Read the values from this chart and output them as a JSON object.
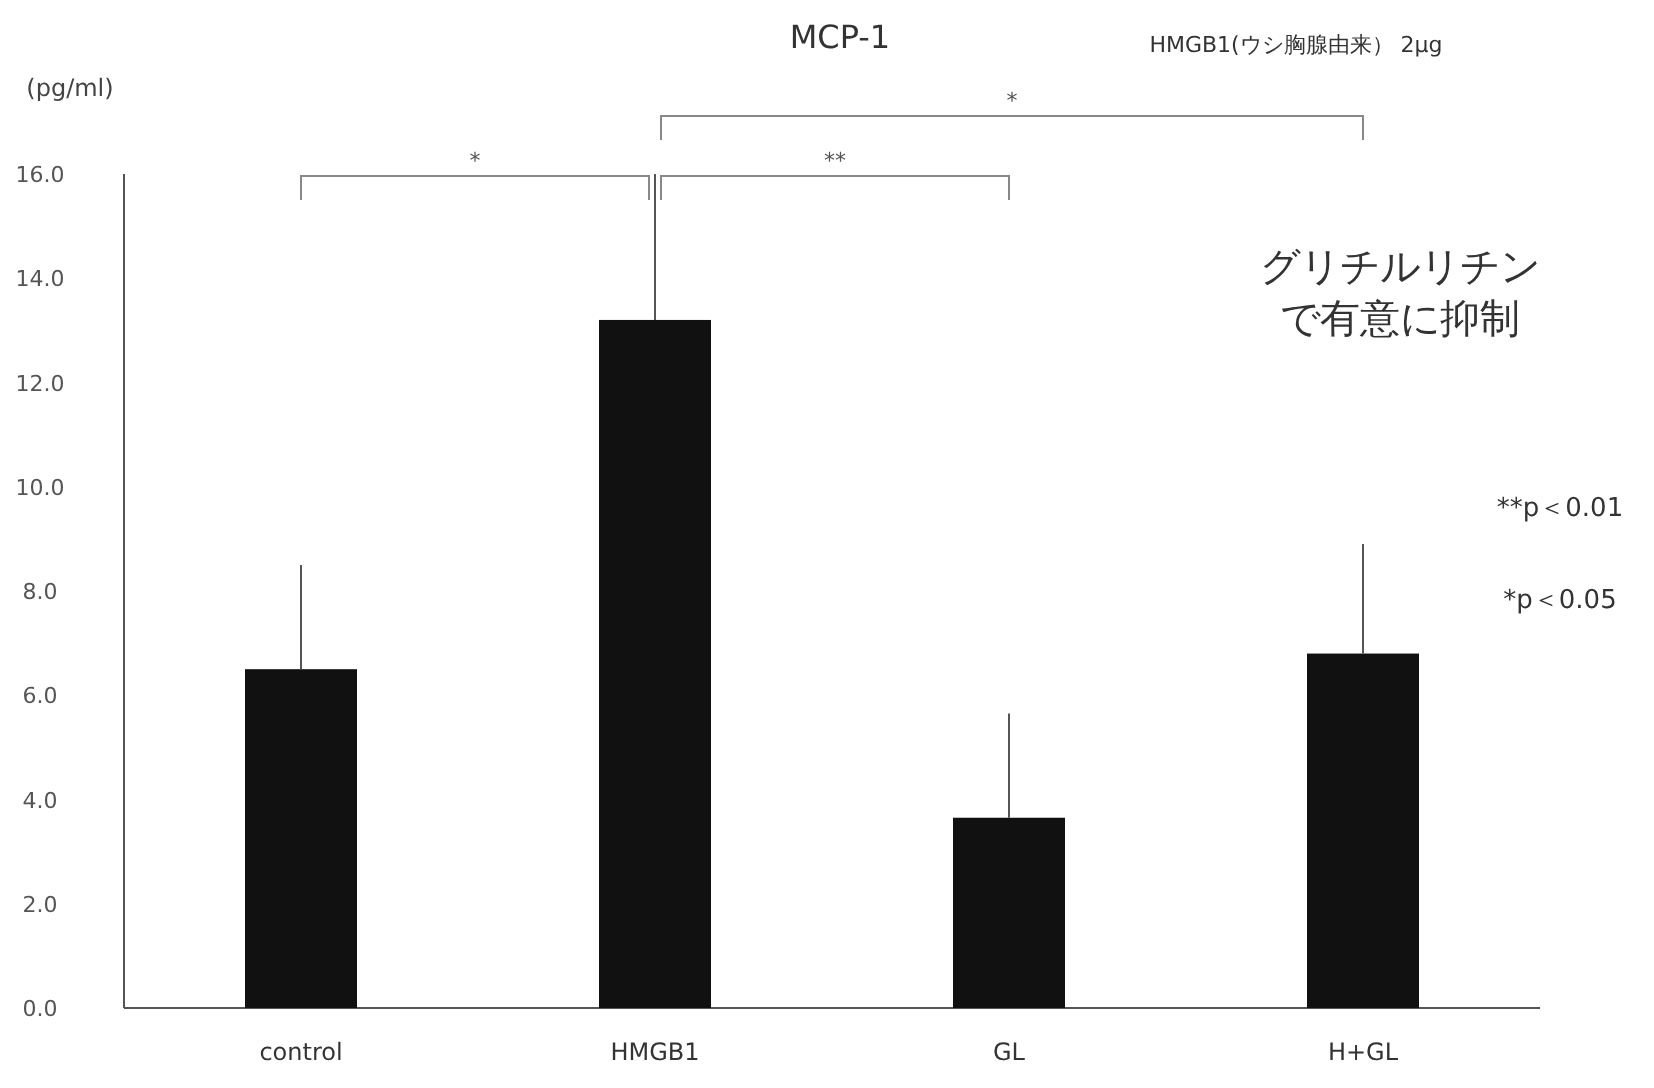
{
  "chart_data": {
    "type": "bar",
    "title": "MCP-1",
    "subtitle": "HMGB1(ウシ胸腺由来） 2μg",
    "ylabel": "(pg/ml)",
    "categories": [
      "control",
      "HMGB1",
      "GL",
      "H+GL"
    ],
    "values": [
      6.5,
      13.2,
      3.65,
      6.8
    ],
    "errors": [
      [
        6.5,
        8.5
      ],
      [
        13.2,
        16.0
      ],
      [
        3.65,
        5.65
      ],
      [
        6.8,
        8.9
      ]
    ],
    "color": "#111111",
    "ylim": [
      0,
      16
    ],
    "yticks": [
      {
        "value": 0,
        "label": "0.0"
      },
      {
        "value": 2,
        "label": "2.0"
      },
      {
        "value": 4,
        "label": "4.0"
      },
      {
        "value": 6,
        "label": "6.0"
      },
      {
        "value": 8,
        "label": "8.0"
      },
      {
        "value": 10,
        "label": "10.0"
      },
      {
        "value": 12,
        "label": "12.0"
      },
      {
        "value": 14,
        "label": "14.0"
      },
      {
        "value": 16,
        "label": "16.0"
      }
    ],
    "annotations": [
      "*",
      "**",
      "*",
      "グリチルリチン",
      "で有意に抑制",
      "**p＜0.01",
      "*p＜0.05"
    ]
  }
}
